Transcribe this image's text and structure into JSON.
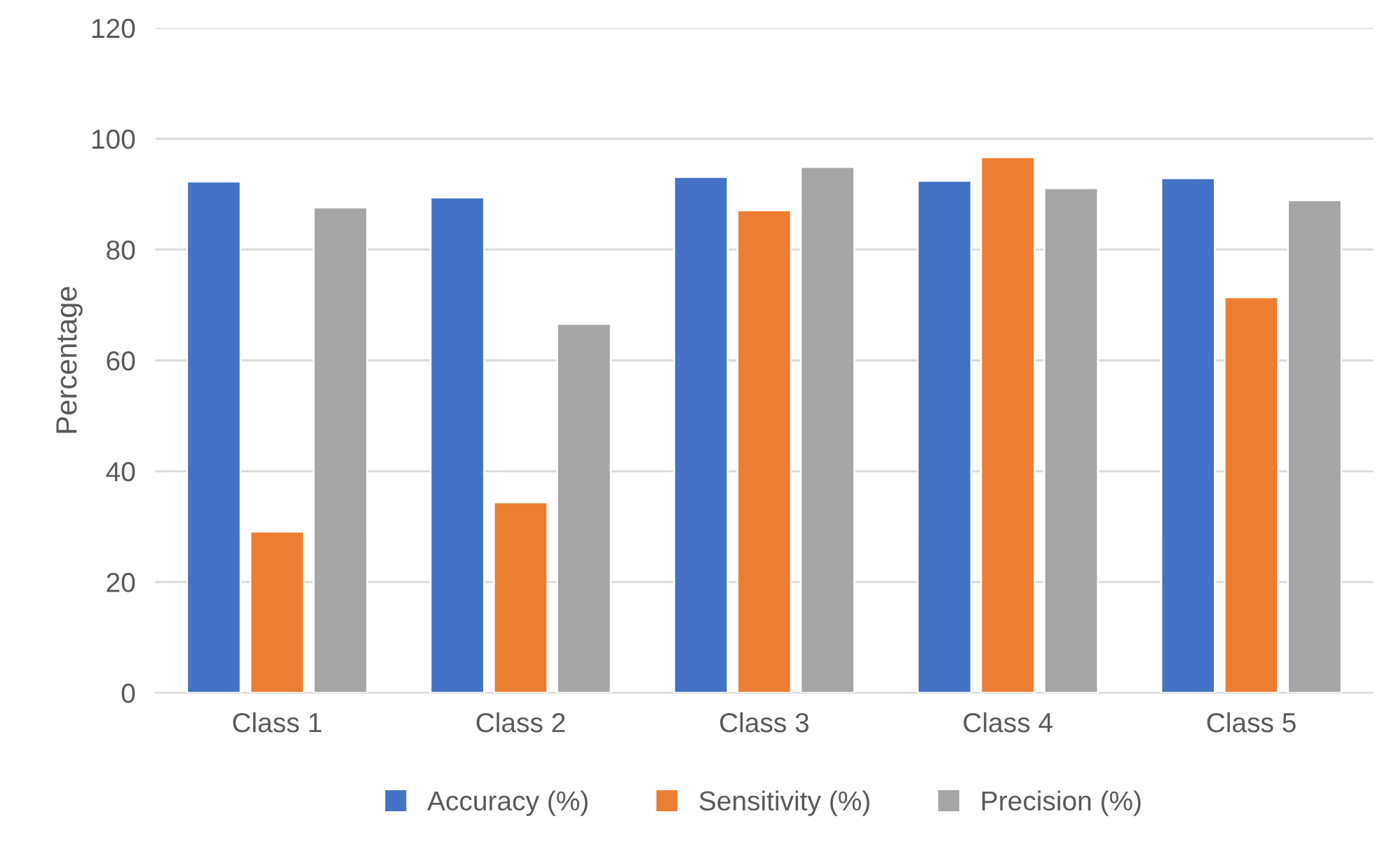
{
  "chart_data": {
    "type": "bar",
    "ylabel": "Percentage",
    "categories": [
      "Class 1",
      "Class 2",
      "Class 3",
      "Class 4",
      "Class 5"
    ],
    "series": [
      {
        "name": "Accuracy (%)",
        "color": "#4472c4",
        "values": [
          92.3,
          89.4,
          93.1,
          92.4,
          92.9
        ]
      },
      {
        "name": "Sensitivity (%)",
        "color": "#ed7d31",
        "values": [
          29.1,
          34.4,
          87.1,
          96.7,
          71.4
        ]
      },
      {
        "name": "Precision (%)",
        "color": "#a5a5a5",
        "values": [
          87.6,
          66.6,
          94.9,
          91.1,
          88.9
        ]
      }
    ],
    "ylim": [
      0,
      120
    ],
    "yticks": [
      0,
      20,
      40,
      60,
      80,
      100,
      120
    ],
    "grid": "y",
    "legend": "bottom"
  }
}
